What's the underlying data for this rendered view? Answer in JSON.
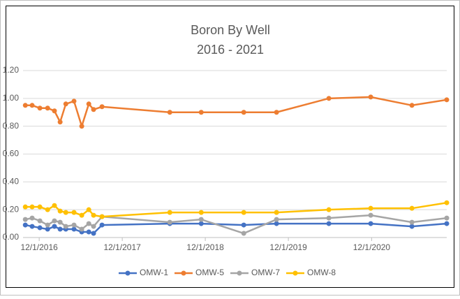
{
  "chart_data": {
    "type": "line",
    "title": "Boron By Well",
    "subtitle": "2016 - 2021",
    "x": [
      "2016-10-01",
      "2016-10-31",
      "2016-12-04",
      "2017-01-07",
      "2017-02-06",
      "2017-03-03",
      "2017-03-28",
      "2017-05-03",
      "2017-06-06",
      "2017-07-07",
      "2017-07-28",
      "2017-09-03",
      "2018-06-28",
      "2018-11-13",
      "2019-05-19",
      "2019-10-10",
      "2020-05-27",
      "2020-11-27",
      "2021-05-27",
      "2021-10-27"
    ],
    "series": [
      {
        "name": "OMW-1",
        "color": "#4472c4",
        "values": [
          0.09,
          0.08,
          0.07,
          0.06,
          0.08,
          0.06,
          0.06,
          0.06,
          0.04,
          0.04,
          0.03,
          0.09,
          0.1,
          0.1,
          0.09,
          0.1,
          0.1,
          0.1,
          0.08,
          0.1
        ]
      },
      {
        "name": "OMW-5",
        "color": "#ed7d31",
        "values": [
          0.95,
          0.95,
          0.93,
          0.93,
          0.91,
          0.83,
          0.96,
          0.98,
          0.8,
          0.96,
          0.92,
          0.94,
          0.9,
          0.9,
          0.9,
          0.9,
          1.0,
          1.01,
          0.95,
          0.99
        ]
      },
      {
        "name": "OMW-7",
        "color": "#a5a5a5",
        "values": [
          0.13,
          0.14,
          0.12,
          0.09,
          0.12,
          0.11,
          0.08,
          0.09,
          0.06,
          0.1,
          0.08,
          0.15,
          0.11,
          0.13,
          0.03,
          0.13,
          0.14,
          0.16,
          0.11,
          0.14
        ]
      },
      {
        "name": "OMW-8",
        "color": "#ffc000",
        "values": [
          0.22,
          0.22,
          0.22,
          0.2,
          0.23,
          0.19,
          0.18,
          0.18,
          0.16,
          0.2,
          0.16,
          0.15,
          0.18,
          0.18,
          0.18,
          0.18,
          0.2,
          0.21,
          0.21,
          0.25
        ]
      }
    ],
    "xlim": [
      "2016-09-21",
      "2021-10-27"
    ],
    "xticks": [
      {
        "value": "2016-12-01",
        "label": "12/1/2016"
      },
      {
        "value": "2017-12-01",
        "label": "12/1/2017"
      },
      {
        "value": "2018-12-01",
        "label": "12/1/2018"
      },
      {
        "value": "2019-12-01",
        "label": "12/1/2019"
      },
      {
        "value": "2020-12-01",
        "label": "12/1/2020"
      }
    ],
    "ylim": [
      0,
      1.2
    ],
    "yticks": [
      {
        "value": 0,
        "label": "0.00"
      },
      {
        "value": 0.2,
        "label": "0.20"
      },
      {
        "value": 0.4,
        "label": "0.40"
      },
      {
        "value": 0.6,
        "label": "0.60"
      },
      {
        "value": 0.8,
        "label": "0.80"
      },
      {
        "value": 1,
        "label": "1.00"
      },
      {
        "value": 1.2,
        "label": "1.20"
      }
    ],
    "grid": true,
    "legend": "bottom"
  }
}
